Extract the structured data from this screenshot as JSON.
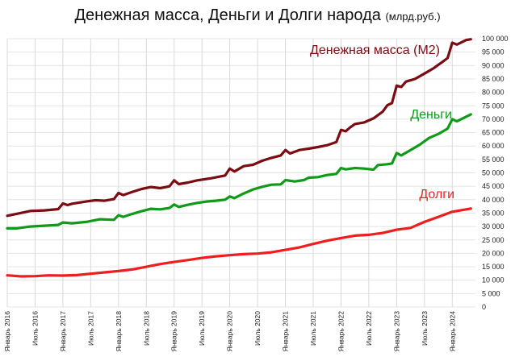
{
  "title": "Денежная масса, Деньги и Долги народа",
  "unit": "(млрд.руб.)",
  "chart_data": {
    "type": "line",
    "title": "Денежная масса, Деньги и Долги народа",
    "subtitle": "(млрд.руб.)",
    "ylim": [
      0,
      100000
    ],
    "yticks": [
      0,
      5000,
      10000,
      15000,
      20000,
      25000,
      30000,
      35000,
      40000,
      45000,
      50000,
      55000,
      60000,
      65000,
      70000,
      75000,
      80000,
      85000,
      90000,
      95000,
      100000
    ],
    "ytick_labels": [
      "0",
      "5 000",
      "10 000",
      "15 000",
      "20 000",
      "25 000",
      "30 000",
      "35 000",
      "40 000",
      "45 000",
      "50 000",
      "55 000",
      "60 000",
      "65 000",
      "70 000",
      "75 000",
      "80 000",
      "85 000",
      "90 000",
      "95 000",
      "100 000"
    ],
    "xlim": [
      "2016-01",
      "2024-06"
    ],
    "x_ticks": [
      "2016-01",
      "2016-07",
      "2017-01",
      "2017-07",
      "2018-01",
      "2018-07",
      "2019-01",
      "2019-07",
      "2020-01",
      "2020-07",
      "2021-01",
      "2021-07",
      "2022-01",
      "2022-07",
      "2023-01",
      "2023-07",
      "2024-01"
    ],
    "x_tick_labels": [
      "Январь 2016",
      "Июль 2016",
      "Январь 2017",
      "Июль 2017",
      "Январь 2018",
      "Июль 2018",
      "Январь 2019",
      "Июль 2019",
      "Январь 2020",
      "Июль 2020",
      "Январь 2021",
      "Июль 2021",
      "Январь 2022",
      "Июль 2022",
      "Январь 2023",
      "Июль 2023",
      "Январь 2024"
    ],
    "grid": true,
    "series": [
      {
        "name": "Денежная масса (M2)",
        "color": "#7a0c12",
        "points": [
          [
            "2016-01",
            34000
          ],
          [
            "2016-03",
            34700
          ],
          [
            "2016-06",
            35800
          ],
          [
            "2016-09",
            36000
          ],
          [
            "2016-12",
            36500
          ],
          [
            "2017-01",
            38600
          ],
          [
            "2017-02",
            38000
          ],
          [
            "2017-03",
            38500
          ],
          [
            "2017-06",
            39300
          ],
          [
            "2017-08",
            39800
          ],
          [
            "2017-10",
            39600
          ],
          [
            "2017-12",
            40200
          ],
          [
            "2018-01",
            42500
          ],
          [
            "2018-02",
            41700
          ],
          [
            "2018-04",
            42900
          ],
          [
            "2018-06",
            44000
          ],
          [
            "2018-08",
            44700
          ],
          [
            "2018-10",
            44300
          ],
          [
            "2018-12",
            45000
          ],
          [
            "2019-01",
            47200
          ],
          [
            "2019-02",
            45800
          ],
          [
            "2019-04",
            46400
          ],
          [
            "2019-06",
            47200
          ],
          [
            "2019-09",
            48000
          ],
          [
            "2019-12",
            49000
          ],
          [
            "2020-01",
            51600
          ],
          [
            "2020-02",
            50500
          ],
          [
            "2020-04",
            52500
          ],
          [
            "2020-06",
            53000
          ],
          [
            "2020-08",
            54500
          ],
          [
            "2020-10",
            55600
          ],
          [
            "2020-12",
            56500
          ],
          [
            "2021-01",
            58500
          ],
          [
            "2021-02",
            57200
          ],
          [
            "2021-04",
            58500
          ],
          [
            "2021-06",
            59000
          ],
          [
            "2021-08",
            59600
          ],
          [
            "2021-10",
            60300
          ],
          [
            "2021-12",
            61500
          ],
          [
            "2022-01",
            66000
          ],
          [
            "2022-02",
            65500
          ],
          [
            "2022-03",
            67000
          ],
          [
            "2022-04",
            68200
          ],
          [
            "2022-06",
            68800
          ],
          [
            "2022-08",
            70300
          ],
          [
            "2022-10",
            72800
          ],
          [
            "2022-11",
            75200
          ],
          [
            "2022-12",
            76000
          ],
          [
            "2023-01",
            82500
          ],
          [
            "2023-02",
            82000
          ],
          [
            "2023-03",
            84000
          ],
          [
            "2023-05",
            85000
          ],
          [
            "2023-07",
            87000
          ],
          [
            "2023-09",
            89000
          ],
          [
            "2023-11",
            91500
          ],
          [
            "2023-12",
            92800
          ],
          [
            "2024-01",
            98500
          ],
          [
            "2024-02",
            97800
          ],
          [
            "2024-04",
            99500
          ],
          [
            "2024-05",
            99800
          ]
        ]
      },
      {
        "name": "Деньги",
        "color": "#0f9a18",
        "points": [
          [
            "2016-01",
            29300
          ],
          [
            "2016-03",
            29300
          ],
          [
            "2016-06",
            30000
          ],
          [
            "2016-09",
            30300
          ],
          [
            "2016-12",
            30600
          ],
          [
            "2017-01",
            31500
          ],
          [
            "2017-03",
            31200
          ],
          [
            "2017-06",
            31700
          ],
          [
            "2017-09",
            32700
          ],
          [
            "2017-12",
            32500
          ],
          [
            "2018-01",
            34200
          ],
          [
            "2018-02",
            33600
          ],
          [
            "2018-04",
            34700
          ],
          [
            "2018-06",
            35700
          ],
          [
            "2018-08",
            36600
          ],
          [
            "2018-10",
            36400
          ],
          [
            "2018-12",
            36900
          ],
          [
            "2019-01",
            38200
          ],
          [
            "2019-02",
            37300
          ],
          [
            "2019-04",
            38100
          ],
          [
            "2019-06",
            38800
          ],
          [
            "2019-08",
            39300
          ],
          [
            "2019-10",
            39600
          ],
          [
            "2019-12",
            40000
          ],
          [
            "2020-01",
            41200
          ],
          [
            "2020-02",
            40600
          ],
          [
            "2020-04",
            42300
          ],
          [
            "2020-06",
            43800
          ],
          [
            "2020-08",
            44800
          ],
          [
            "2020-10",
            45600
          ],
          [
            "2020-12",
            45700
          ],
          [
            "2021-01",
            47300
          ],
          [
            "2021-03",
            46800
          ],
          [
            "2021-05",
            47300
          ],
          [
            "2021-06",
            48200
          ],
          [
            "2021-08",
            48400
          ],
          [
            "2021-10",
            49200
          ],
          [
            "2021-12",
            49600
          ],
          [
            "2022-01",
            51800
          ],
          [
            "2022-02",
            51300
          ],
          [
            "2022-04",
            51800
          ],
          [
            "2022-06",
            51600
          ],
          [
            "2022-08",
            51200
          ],
          [
            "2022-09",
            52900
          ],
          [
            "2022-11",
            53200
          ],
          [
            "2022-12",
            53500
          ],
          [
            "2023-01",
            57400
          ],
          [
            "2023-02",
            56500
          ],
          [
            "2023-04",
            58500
          ],
          [
            "2023-06",
            60500
          ],
          [
            "2023-08",
            63000
          ],
          [
            "2023-10",
            64500
          ],
          [
            "2023-12",
            66500
          ],
          [
            "2024-01",
            70000
          ],
          [
            "2024-02",
            69200
          ],
          [
            "2024-05",
            71800
          ]
        ]
      },
      {
        "name": "Долги",
        "color": "#ee1e1e",
        "points": [
          [
            "2016-01",
            11800
          ],
          [
            "2016-04",
            11400
          ],
          [
            "2016-07",
            11500
          ],
          [
            "2016-10",
            11800
          ],
          [
            "2017-01",
            11700
          ],
          [
            "2017-04",
            11900
          ],
          [
            "2017-07",
            12400
          ],
          [
            "2017-10",
            12900
          ],
          [
            "2018-01",
            13400
          ],
          [
            "2018-04",
            14000
          ],
          [
            "2018-07",
            15000
          ],
          [
            "2018-10",
            16000
          ],
          [
            "2019-01",
            16800
          ],
          [
            "2019-04",
            17500
          ],
          [
            "2019-07",
            18300
          ],
          [
            "2019-10",
            18900
          ],
          [
            "2020-01",
            19300
          ],
          [
            "2020-04",
            19700
          ],
          [
            "2020-07",
            19900
          ],
          [
            "2020-10",
            20400
          ],
          [
            "2021-01",
            21300
          ],
          [
            "2021-04",
            22200
          ],
          [
            "2021-07",
            23500
          ],
          [
            "2021-10",
            24700
          ],
          [
            "2022-01",
            25700
          ],
          [
            "2022-04",
            26600
          ],
          [
            "2022-07",
            26900
          ],
          [
            "2022-10",
            27600
          ],
          [
            "2023-01",
            28800
          ],
          [
            "2023-04",
            29500
          ],
          [
            "2023-07",
            31700
          ],
          [
            "2023-10",
            33600
          ],
          [
            "2024-01",
            35500
          ],
          [
            "2024-05",
            36700
          ]
        ]
      }
    ]
  }
}
